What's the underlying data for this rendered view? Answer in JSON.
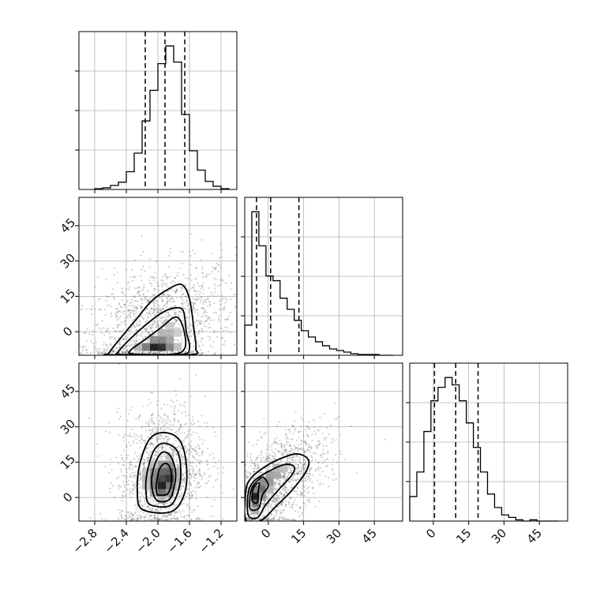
{
  "chart_data": {
    "type": "scatter",
    "layout": "corner-plot",
    "grid": true,
    "parameters": [
      {
        "id": "p0",
        "axis_range": [
          -3.0,
          -1.0
        ],
        "ticks": [
          -2.8,
          -2.4,
          -2.0,
          -1.6,
          -1.2
        ],
        "tick_labels": [
          "−2.8",
          "−2.4",
          "−2.0",
          "−1.6",
          "−1.2"
        ],
        "quantiles": [
          -2.16,
          -1.91,
          -1.66
        ],
        "histogram": {
          "bin_edges": [
            -2.8,
            -2.7,
            -2.6,
            -2.5,
            -2.4,
            -2.3,
            -2.2,
            -2.1,
            -2.0,
            -1.9,
            -1.8,
            -1.7,
            -1.6,
            -1.5,
            -1.4,
            -1.3,
            -1.2,
            -1.1
          ],
          "counts": [
            1,
            2,
            5,
            9,
            22,
            45,
            85,
            123,
            156,
            178,
            158,
            93,
            48,
            24,
            10,
            4,
            1
          ]
        }
      },
      {
        "id": "p1",
        "axis_range": [
          -10,
          57
        ],
        "ticks": [
          0,
          15,
          30,
          45
        ],
        "tick_labels": [
          "0",
          "15",
          "30",
          "45"
        ],
        "quantiles": [
          -5.0,
          1.0,
          13.0
        ],
        "histogram": {
          "bin_edges": [
            -10,
            -7,
            -4,
            -1,
            2,
            5,
            8,
            11,
            14,
            17,
            20,
            23,
            26,
            29,
            32,
            35,
            38,
            41,
            44,
            47,
            50,
            53
          ],
          "counts": [
            38,
            181,
            138,
            100,
            94,
            72,
            58,
            44,
            31,
            23,
            17,
            12,
            8,
            6,
            4,
            2,
            1,
            1,
            1,
            0,
            0
          ]
        }
      },
      {
        "id": "p2",
        "axis_range": [
          -10,
          57
        ],
        "ticks": [
          0,
          15,
          30,
          45
        ],
        "tick_labels": [
          "0",
          "15",
          "30",
          "45"
        ],
        "quantiles": [
          0.5,
          9.5,
          19.0
        ],
        "histogram": {
          "bin_edges": [
            -10,
            -7,
            -4,
            -1,
            2,
            5,
            8,
            11,
            14,
            17,
            20,
            23,
            26,
            29,
            32,
            35,
            38,
            41,
            44,
            47,
            50,
            53
          ],
          "counts": [
            20,
            40,
            73,
            98,
            109,
            117,
            111,
            98,
            80,
            60,
            40,
            22,
            11,
            5,
            3,
            1,
            0,
            1,
            0,
            0,
            0
          ]
        }
      }
    ],
    "panels": [
      {
        "x_param": "p0",
        "y_param": "p1",
        "mode_2d": [
          -1.98,
          -6.5
        ],
        "density_cells": [
          {
            "x": -2.05,
            "y": -6.5,
            "d": 1.0
          },
          {
            "x": -1.95,
            "y": -6.5,
            "d": 0.92
          },
          {
            "x": -2.15,
            "y": -6.5,
            "d": 0.55
          },
          {
            "x": -1.85,
            "y": -6.5,
            "d": 0.5
          },
          {
            "x": -2.05,
            "y": -3.5,
            "d": 0.45
          },
          {
            "x": -1.95,
            "y": -3.5,
            "d": 0.5
          },
          {
            "x": -1.85,
            "y": -3.5,
            "d": 0.35
          },
          {
            "x": -1.95,
            "y": -0.5,
            "d": 0.25
          },
          {
            "x": -1.85,
            "y": -0.5,
            "d": 0.25
          },
          {
            "x": -2.25,
            "y": -6.5,
            "d": 0.25
          },
          {
            "x": -1.75,
            "y": -6.5,
            "d": 0.2
          },
          {
            "x": -1.85,
            "y": 2.5,
            "d": 0.15
          },
          {
            "x": -1.75,
            "y": -0.5,
            "d": 0.15
          }
        ],
        "contours": [
          [
            [
              -2.35,
              -8
            ],
            [
              -2.15,
              -3
            ],
            [
              -1.95,
              2
            ],
            [
              -1.8,
              6
            ],
            [
              -1.72,
              5
            ],
            [
              -1.66,
              -1
            ],
            [
              -1.66,
              -7
            ],
            [
              -1.8,
              -9.5
            ],
            [
              -2.3,
              -9.5
            ]
          ],
          [
            [
              -2.5,
              -8.5
            ],
            [
              -2.35,
              -3
            ],
            [
              -2.15,
              3
            ],
            [
              -1.95,
              8
            ],
            [
              -1.8,
              10
            ],
            [
              -1.68,
              9
            ],
            [
              -1.64,
              0
            ],
            [
              -1.6,
              -7
            ],
            [
              -1.72,
              -9.7
            ],
            [
              -2.45,
              -9.7
            ]
          ],
          [
            [
              -2.62,
              -9
            ],
            [
              -2.48,
              -3
            ],
            [
              -2.28,
              5
            ],
            [
              -2.08,
              13
            ],
            [
              -1.87,
              18
            ],
            [
              -1.7,
              20
            ],
            [
              -1.6,
              14
            ],
            [
              -1.54,
              0
            ],
            [
              -1.52,
              -7
            ],
            [
              -1.6,
              -9.8
            ],
            [
              -2.6,
              -9.8
            ]
          ]
        ]
      },
      {
        "x_param": "p0",
        "y_param": "p2",
        "mode_2d": [
          -1.95,
          5
        ],
        "density_cells": [
          {
            "x": -1.95,
            "y": 5,
            "d": 1.0
          },
          {
            "x": -1.85,
            "y": 8,
            "d": 0.9
          },
          {
            "x": -1.95,
            "y": 8,
            "d": 0.8
          },
          {
            "x": -1.85,
            "y": 11,
            "d": 0.7
          },
          {
            "x": -1.95,
            "y": 11,
            "d": 0.65
          },
          {
            "x": -1.95,
            "y": 2,
            "d": 0.6
          },
          {
            "x": -1.85,
            "y": 5,
            "d": 0.6
          },
          {
            "x": -2.05,
            "y": 5,
            "d": 0.55
          },
          {
            "x": -2.05,
            "y": 8,
            "d": 0.5
          },
          {
            "x": -1.85,
            "y": 14,
            "d": 0.45
          },
          {
            "x": -2.05,
            "y": 11,
            "d": 0.45
          },
          {
            "x": -1.95,
            "y": 14,
            "d": 0.4
          },
          {
            "x": -1.85,
            "y": 2,
            "d": 0.4
          },
          {
            "x": -2.05,
            "y": 2,
            "d": 0.35
          },
          {
            "x": -2.15,
            "y": 8,
            "d": 0.25
          },
          {
            "x": -1.75,
            "y": 11,
            "d": 0.3
          },
          {
            "x": -1.75,
            "y": 8,
            "d": 0.28
          },
          {
            "x": -1.95,
            "y": -1,
            "d": 0.25
          },
          {
            "x": -2.05,
            "y": 14,
            "d": 0.22
          },
          {
            "x": -1.85,
            "y": 17,
            "d": 0.2
          },
          {
            "x": -1.75,
            "y": 5,
            "d": 0.2
          },
          {
            "x": -2.15,
            "y": 5,
            "d": 0.2
          },
          {
            "x": -2.15,
            "y": 11,
            "d": 0.18
          }
        ],
        "contours": [
          [
            [
              -1.99,
              1
            ],
            [
              -1.88,
              1.5
            ],
            [
              -1.83,
              6
            ],
            [
              -1.84,
              12
            ],
            [
              -1.9,
              14.5
            ],
            [
              -1.98,
              12
            ],
            [
              -2.02,
              5
            ],
            [
              -2.01,
              1.5
            ]
          ],
          [
            [
              -2.02,
              -1
            ],
            [
              -1.86,
              -1
            ],
            [
              -1.79,
              5
            ],
            [
              -1.78,
              12
            ],
            [
              -1.85,
              18
            ],
            [
              -1.95,
              19
            ],
            [
              -2.04,
              14
            ],
            [
              -2.08,
              6
            ]
          ],
          [
            [
              -2.1,
              -3
            ],
            [
              -1.85,
              -3.5
            ],
            [
              -1.74,
              3
            ],
            [
              -1.71,
              12
            ],
            [
              -1.76,
              20
            ],
            [
              -1.92,
              23
            ],
            [
              -2.05,
              20
            ],
            [
              -2.14,
              10
            ],
            [
              -2.15,
              2
            ]
          ],
          [
            [
              -2.2,
              -5
            ],
            [
              -1.83,
              -6
            ],
            [
              -1.66,
              2
            ],
            [
              -1.64,
              14
            ],
            [
              -1.72,
              24
            ],
            [
              -1.9,
              27.5
            ],
            [
              -2.1,
              25
            ],
            [
              -2.23,
              14
            ],
            [
              -2.26,
              3
            ]
          ]
        ]
      },
      {
        "x_param": "p1",
        "y_param": "p2",
        "mode_2d": [
          -5.5,
          0.5
        ],
        "density_cells": [
          {
            "x": -5.5,
            "y": 0.5,
            "d": 1.0
          },
          {
            "x": -5.5,
            "y": -2.5,
            "d": 0.6
          },
          {
            "x": -2.5,
            "y": 3.5,
            "d": 0.6
          },
          {
            "x": -5.5,
            "y": 3.5,
            "d": 0.5
          },
          {
            "x": -2.5,
            "y": 6.5,
            "d": 0.45
          },
          {
            "x": 0.5,
            "y": 6.5,
            "d": 0.4
          },
          {
            "x": -2.5,
            "y": 0.5,
            "d": 0.4
          },
          {
            "x": 0.5,
            "y": 9.5,
            "d": 0.35
          },
          {
            "x": 3.5,
            "y": 9.5,
            "d": 0.3
          },
          {
            "x": 3.5,
            "y": 12.5,
            "d": 0.25
          },
          {
            "x": -5.5,
            "y": -5.5,
            "d": 0.3
          },
          {
            "x": 6.5,
            "y": 12.5,
            "d": 0.2
          },
          {
            "x": -8.5,
            "y": -2.5,
            "d": 0.2
          },
          {
            "x": 0.5,
            "y": 3.5,
            "d": 0.25
          }
        ],
        "contours": [
          [
            [
              -6.8,
              -1.5
            ],
            [
              -4.6,
              -2
            ],
            [
              -4.2,
              3
            ],
            [
              -3.8,
              6
            ],
            [
              -5.2,
              5.5
            ],
            [
              -6.6,
              3
            ]
          ],
          [
            [
              -7.6,
              -5
            ],
            [
              -4,
              -4.5
            ],
            [
              -2.5,
              1
            ],
            [
              0,
              5
            ],
            [
              -2,
              8.5
            ],
            [
              -4.2,
              7.5
            ],
            [
              -7,
              4
            ],
            [
              -7.8,
              0
            ]
          ],
          [
            [
              -8.5,
              -7.5
            ],
            [
              -4.5,
              -8.5
            ],
            [
              -1,
              -3
            ],
            [
              5,
              4
            ],
            [
              10,
              9.5
            ],
            [
              11,
              13
            ],
            [
              7,
              14
            ],
            [
              0,
              11
            ],
            [
              -6,
              7
            ],
            [
              -8.5,
              2
            ]
          ],
          [
            [
              -9.5,
              -9.5
            ],
            [
              -3,
              -9.7
            ],
            [
              3,
              -4
            ],
            [
              10,
              3
            ],
            [
              16,
              11
            ],
            [
              17,
              16
            ],
            [
              12,
              18.5
            ],
            [
              4,
              16
            ],
            [
              -3,
              12
            ],
            [
              -7.5,
              8
            ],
            [
              -9.5,
              3
            ]
          ]
        ]
      }
    ]
  }
}
